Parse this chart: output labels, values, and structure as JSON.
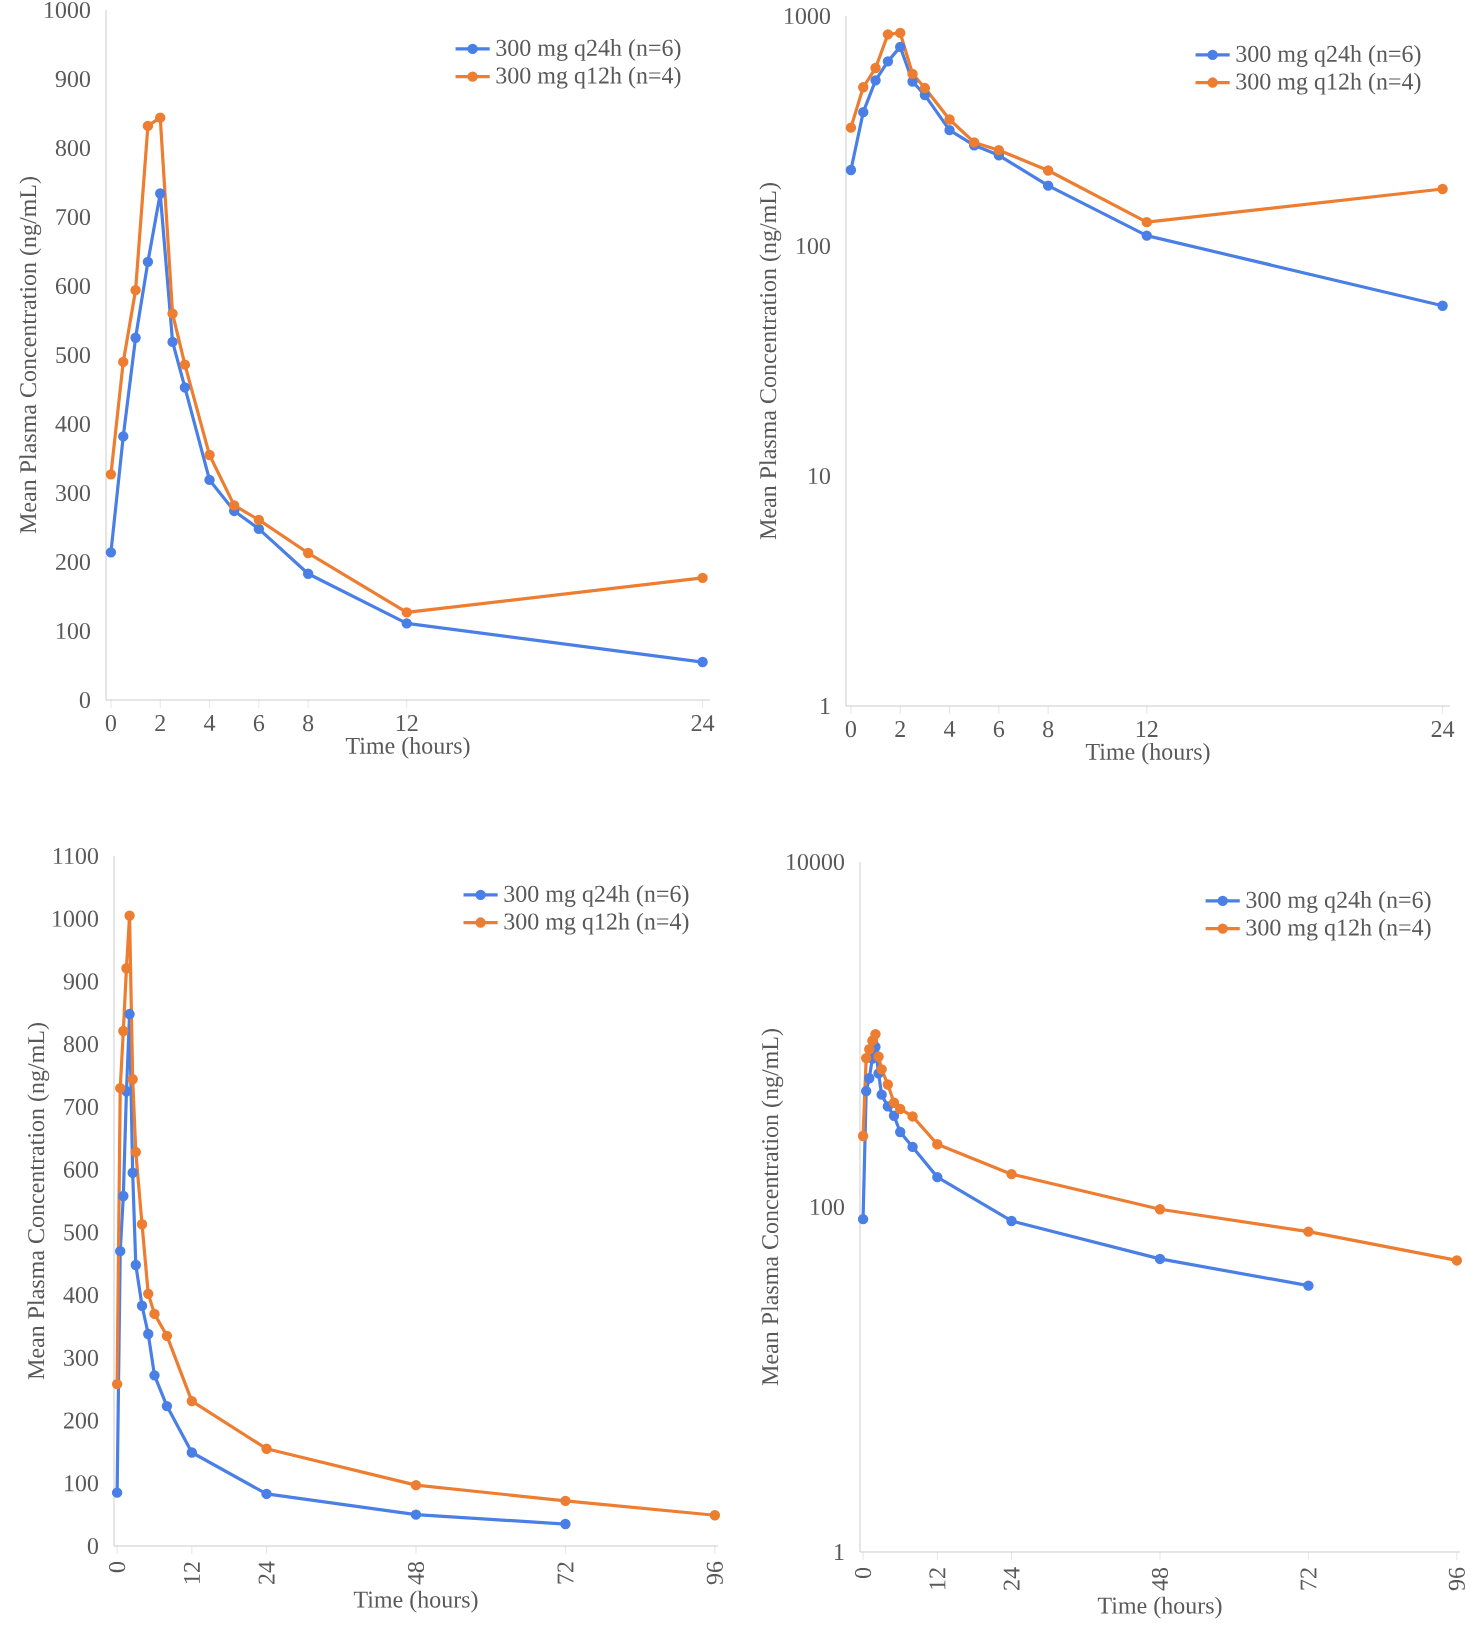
{
  "chart_data": [
    {
      "type": "line",
      "xlabel": "Time (hours)",
      "ylabel": "Mean Plasma Concentration (ng/mL)",
      "xlim": [
        -0.2,
        24.3
      ],
      "ylim": [
        0,
        1000
      ],
      "xticks": [
        0,
        2,
        4,
        6,
        8,
        12,
        24
      ],
      "yticks": [
        0,
        100,
        200,
        300,
        400,
        500,
        600,
        700,
        800,
        900,
        1000
      ],
      "legend": "top right",
      "marker": "circle",
      "grid": false,
      "series": [
        {
          "name": "300 mg q24h (n=6)",
          "color": "#4a7fe6",
          "x": [
            0,
            0.5,
            1,
            1.5,
            2,
            2.5,
            3,
            4,
            5,
            6,
            8,
            12,
            24
          ],
          "values": [
            214,
            382,
            525,
            635,
            734,
            519,
            453,
            319,
            274,
            248,
            183,
            111,
            55
          ]
        },
        {
          "name": "300 mg q12h (n=4)",
          "color": "#ed7d31",
          "x": [
            0,
            0.5,
            1,
            1.5,
            2,
            2.5,
            3,
            4,
            5,
            6,
            8,
            12,
            24
          ],
          "values": [
            327,
            490,
            594,
            832,
            844,
            560,
            486,
            355,
            282,
            261,
            213,
            127,
            177
          ]
        }
      ]
    },
    {
      "type": "line",
      "xlabel": "Time (hours)",
      "ylabel": "Mean Plasma Concentration (ng/mL)",
      "xlim": [
        -0.2,
        24.3
      ],
      "ylim": [
        1,
        1000
      ],
      "log": "y",
      "xticks": [
        0,
        2,
        4,
        6,
        8,
        12,
        24
      ],
      "yticks": [
        1,
        10,
        100,
        1000
      ],
      "legend": "top right",
      "marker": "circle",
      "grid": false,
      "series": [
        {
          "name": "300 mg q24h (n=6)",
          "color": "#4a7fe6",
          "x": [
            0,
            0.5,
            1,
            1.5,
            2,
            2.5,
            3,
            4,
            5,
            6,
            8,
            12,
            24
          ],
          "values": [
            214,
            382,
            525,
            635,
            734,
            519,
            453,
            319,
            274,
            248,
            183,
            111,
            55
          ]
        },
        {
          "name": "300 mg q12h (n=4)",
          "color": "#ed7d31",
          "x": [
            0,
            0.5,
            1,
            1.5,
            2,
            2.5,
            3,
            4,
            5,
            6,
            8,
            12,
            24
          ],
          "values": [
            327,
            490,
            594,
            832,
            844,
            560,
            486,
            355,
            282,
            261,
            213,
            127,
            177
          ]
        }
      ]
    },
    {
      "type": "line",
      "xlabel": "Time (hours)",
      "ylabel": "Mean Plasma Concentration (ng/mL)",
      "xlim": [
        -0.5,
        96.5
      ],
      "ylim": [
        0,
        1100
      ],
      "xticks": [
        0,
        12,
        24,
        48,
        72,
        96
      ],
      "yticks": [
        0,
        100,
        200,
        300,
        400,
        500,
        600,
        700,
        800,
        900,
        1000,
        1100
      ],
      "legend": "top right",
      "marker": "circle",
      "grid": false,
      "series": [
        {
          "name": "300 mg q24h (n=6)",
          "color": "#4a7fe6",
          "x": [
            0,
            0.5,
            1,
            1.5,
            2,
            2.5,
            3,
            4,
            5,
            6,
            8,
            12,
            24,
            48,
            72
          ],
          "values": [
            85,
            470,
            558,
            725,
            848,
            595,
            448,
            383,
            338,
            272,
            223,
            149,
            83,
            50,
            35
          ]
        },
        {
          "name": "300 mg q12h (n=4)",
          "color": "#ed7d31",
          "x": [
            0,
            0.5,
            1,
            1.5,
            2,
            2.5,
            3,
            4,
            5,
            6,
            8,
            12,
            24,
            48,
            72,
            96
          ],
          "values": [
            258,
            730,
            821,
            921,
            1005,
            744,
            628,
            513,
            402,
            370,
            335,
            231,
            155,
            97,
            72,
            49
          ]
        }
      ]
    },
    {
      "type": "line",
      "xlabel": "Time (hours)",
      "ylabel": "Mean Plasma Concentration (ng/mL)",
      "xlim": [
        -0.5,
        96.5
      ],
      "ylim": [
        1,
        10000
      ],
      "log": "y",
      "xticks": [
        0,
        12,
        24,
        48,
        72,
        96
      ],
      "yticks": [
        1,
        100,
        10000
      ],
      "legend": "top right",
      "marker": "circle",
      "grid": false,
      "series": [
        {
          "name": "300 mg q24h (n=6)",
          "color": "#4a7fe6",
          "x": [
            0,
            0.5,
            1,
            1.5,
            2,
            2.5,
            3,
            4,
            5,
            6,
            8,
            12,
            24,
            48,
            72
          ],
          "values": [
            85,
            470,
            558,
            725,
            848,
            595,
            448,
            383,
            338,
            272,
            223,
            149,
            83,
            50,
            35
          ]
        },
        {
          "name": "300 mg q12h (n=4)",
          "color": "#ed7d31",
          "x": [
            0,
            0.5,
            1,
            1.5,
            2,
            2.5,
            3,
            4,
            5,
            6,
            8,
            12,
            24,
            48,
            72,
            96
          ],
          "values": [
            258,
            730,
            821,
            921,
            1005,
            744,
            628,
            513,
            402,
            370,
            335,
            231,
            155,
            97,
            72,
            49
          ]
        }
      ]
    }
  ]
}
